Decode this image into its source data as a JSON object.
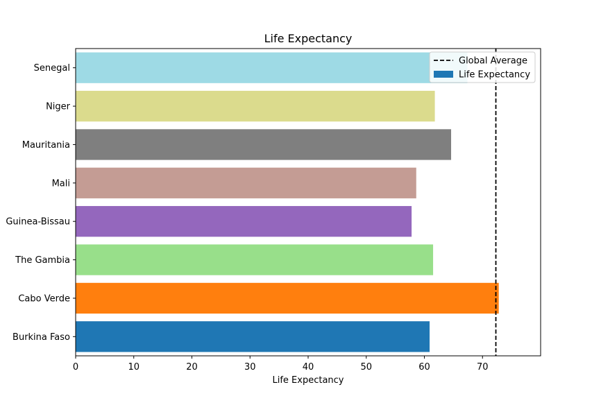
{
  "chart_data": {
    "type": "bar",
    "orientation": "horizontal",
    "title": "Life Expectancy",
    "xlabel": "Life Expectancy",
    "ylabel": "",
    "xlim": [
      0,
      80
    ],
    "xticks": [
      0,
      10,
      20,
      30,
      40,
      50,
      60,
      70
    ],
    "categories": [
      "Burkina Faso",
      "Cabo Verde",
      "The Gambia",
      "Guinea-Bissau",
      "Mali",
      "Mauritania",
      "Niger",
      "Senegal"
    ],
    "values": [
      60.9,
      72.8,
      61.5,
      57.8,
      58.6,
      64.6,
      61.8,
      67.4
    ],
    "colors": [
      "#1f77b4",
      "#ff7f0e",
      "#98df8a",
      "#9467bd",
      "#c49c94",
      "#7f7f7f",
      "#dbdb8d",
      "#9edae5"
    ],
    "reference_line": {
      "label": "Global Average",
      "value": 72.3,
      "style": "dashed",
      "color": "#000000"
    },
    "legend": {
      "placement": "top-right",
      "entries": [
        {
          "label": "Global Average",
          "kind": "dashed-line",
          "color": "#000000"
        },
        {
          "label": "Life Expectancy",
          "kind": "patch",
          "color": "#1f77b4"
        }
      ]
    },
    "grid": false
  }
}
